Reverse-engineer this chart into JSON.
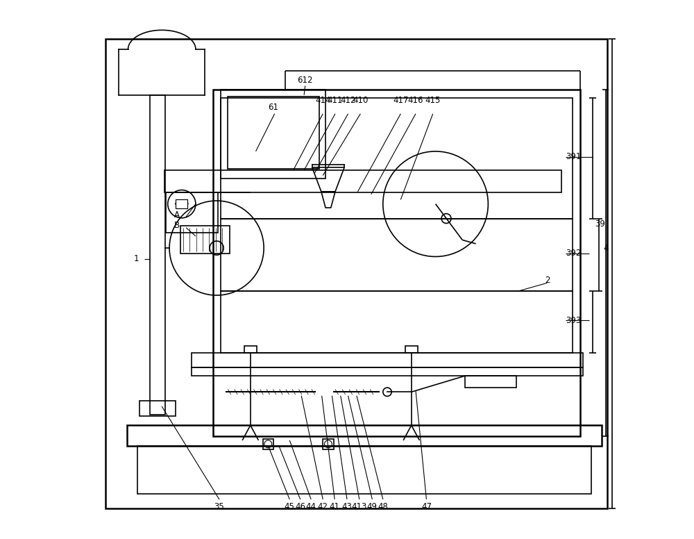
{
  "bg_color": "#ffffff",
  "line_color": "#000000",
  "line_width": 1.2,
  "fig_width": 10.0,
  "fig_height": 7.76
}
